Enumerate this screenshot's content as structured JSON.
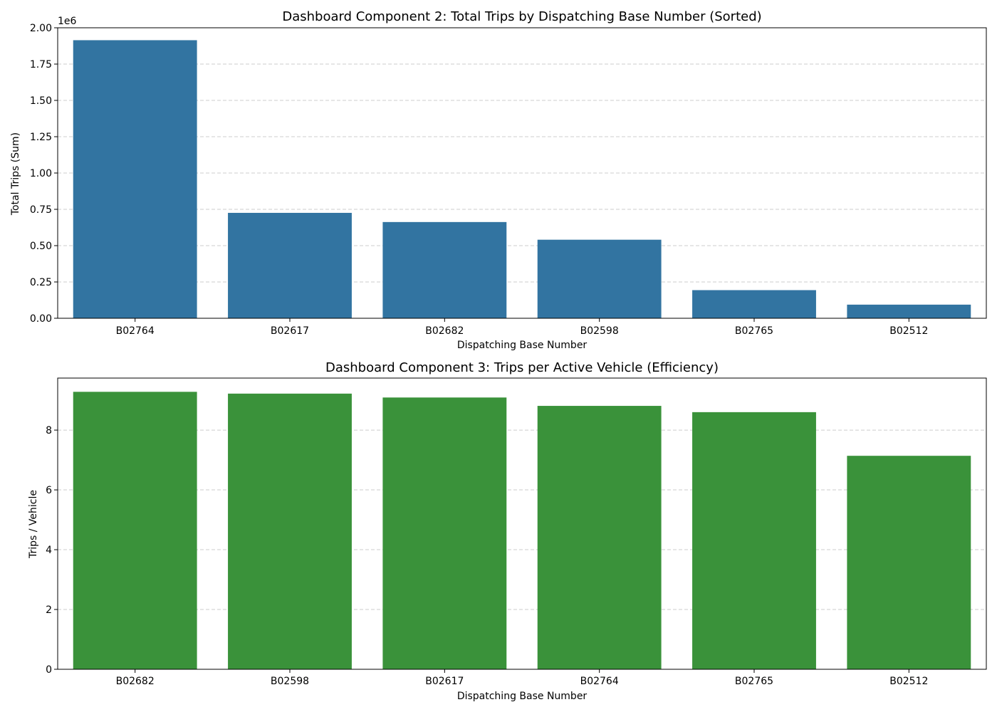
{
  "chart_data": [
    {
      "type": "bar",
      "title": "Dashboard Component 2: Total Trips by Dispatching Base Number (Sorted)",
      "xlabel": "Dispatching Base Number",
      "ylabel": "Total Trips (Sum)",
      "y_offset_label": "1e6",
      "categories": [
        "B02764",
        "B02617",
        "B02682",
        "B02598",
        "B02765",
        "B02512"
      ],
      "values": [
        1914449,
        725728,
        662509,
        540791,
        193670,
        93786
      ],
      "ylim": [
        0,
        2000000
      ],
      "yticks": [
        0,
        250000,
        500000,
        750000,
        1000000,
        1250000,
        1500000,
        1750000,
        2000000
      ],
      "ytick_labels": [
        "0.00",
        "0.25",
        "0.50",
        "0.75",
        "1.00",
        "1.25",
        "1.50",
        "1.75",
        "2.00"
      ],
      "grid": true,
      "color": "#3274a1"
    },
    {
      "type": "bar",
      "title": "Dashboard Component 3: Trips per Active Vehicle (Efficiency)",
      "xlabel": "Dispatching Base Number",
      "ylabel": "Trips / Vehicle",
      "categories": [
        "B02682",
        "B02598",
        "B02617",
        "B02764",
        "B02765",
        "B02512"
      ],
      "values": [
        9.28,
        9.22,
        9.09,
        8.81,
        8.6,
        7.14
      ],
      "ylim": [
        0,
        9.74
      ],
      "yticks": [
        0,
        2,
        4,
        6,
        8
      ],
      "ytick_labels": [
        "0",
        "2",
        "4",
        "6",
        "8"
      ],
      "grid": true,
      "color": "#3a923a"
    }
  ]
}
